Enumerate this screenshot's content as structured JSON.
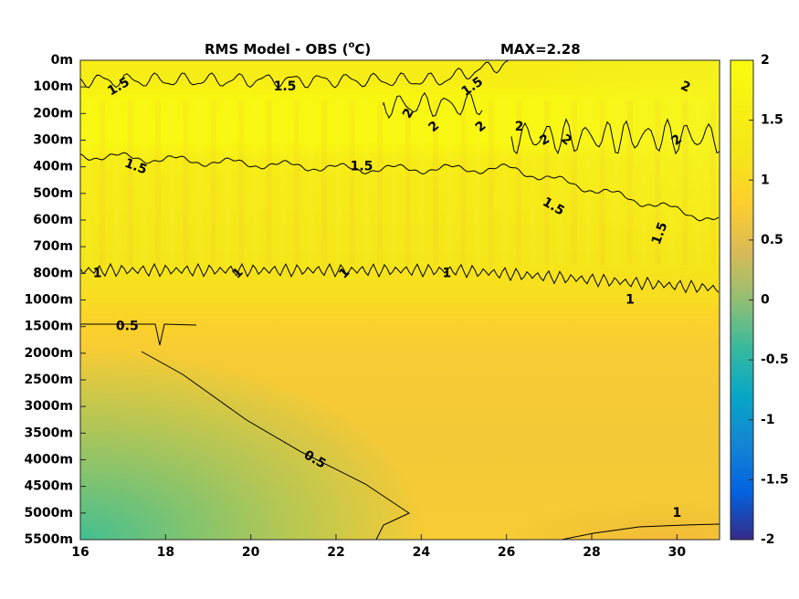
{
  "chart_data": {
    "type": "heatmap",
    "title": "RMS Model - OBS (",
    "title_sup": "o",
    "title_end": "C)",
    "max_label": "MAX=2.28",
    "x_ticks": [
      "16",
      "18",
      "20",
      "22",
      "24",
      "26",
      "28",
      "30"
    ],
    "x_tick_values": [
      16,
      18,
      20,
      22,
      24,
      26,
      28,
      30
    ],
    "xlim": [
      16,
      31
    ],
    "y_ticks": [
      "0m",
      "100m",
      "200m",
      "300m",
      "400m",
      "500m",
      "600m",
      "700m",
      "800m",
      "1000m",
      "1500m",
      "2000m",
      "2500m",
      "3000m",
      "3500m",
      "4000m",
      "4500m",
      "5000m",
      "5500m"
    ],
    "colorbar": {
      "ticks": [
        "2",
        "1.5",
        "1",
        "0.5",
        "0",
        "-0.5",
        "-1",
        "-1.5",
        "-2"
      ],
      "range": [
        -2,
        2
      ],
      "colormap": "parula"
    },
    "contour_levels": [
      0.5,
      1,
      1.5,
      2
    ],
    "contour_labels": [
      {
        "text": "1.5",
        "x": 16.9,
        "depth": "100m",
        "rot": -30
      },
      {
        "text": "1.5",
        "x": 20.8,
        "depth": "100m",
        "rot": 0
      },
      {
        "text": "1.5",
        "x": 25.2,
        "depth": "100m",
        "rot": -35
      },
      {
        "text": "2",
        "x": 30.2,
        "depth": "100m",
        "rot": 25
      },
      {
        "text": "2",
        "x": 23.7,
        "depth": "200m",
        "rot": -60
      },
      {
        "text": "2",
        "x": 24.3,
        "depth": "250m",
        "rot": -40
      },
      {
        "text": "2",
        "x": 25.4,
        "depth": "250m",
        "rot": -40
      },
      {
        "text": "2",
        "x": 26.3,
        "depth": "250m",
        "rot": 0
      },
      {
        "text": "2",
        "x": 26.9,
        "depth": "300m",
        "rot": -30
      },
      {
        "text": "2",
        "x": 27.4,
        "depth": "300m",
        "rot": 40
      },
      {
        "text": "2",
        "x": 30.0,
        "depth": "300m",
        "rot": -40
      },
      {
        "text": "1.5",
        "x": 17.3,
        "depth": "400m",
        "rot": 20
      },
      {
        "text": "1.5",
        "x": 22.6,
        "depth": "400m",
        "rot": 0
      },
      {
        "text": "1.5",
        "x": 27.1,
        "depth": "550m",
        "rot": 30
      },
      {
        "text": "1.5",
        "x": 29.6,
        "depth": "650m",
        "rot": -70
      },
      {
        "text": "1",
        "x": 16.4,
        "depth": "800m",
        "rot": 0
      },
      {
        "text": "1",
        "x": 19.7,
        "depth": "800m",
        "rot": -45
      },
      {
        "text": "1",
        "x": 22.2,
        "depth": "800m",
        "rot": -45
      },
      {
        "text": "1",
        "x": 24.6,
        "depth": "800m",
        "rot": 0
      },
      {
        "text": "1",
        "x": 28.9,
        "depth": "1000m",
        "rot": 0
      },
      {
        "text": "0.5",
        "x": 17.1,
        "depth": "1500m",
        "rot": 0
      },
      {
        "text": "0.5",
        "x": 21.5,
        "depth": "4000m",
        "rot": 30
      },
      {
        "text": "1",
        "x": 30.0,
        "depth": "5000m",
        "rot": 0
      }
    ]
  }
}
